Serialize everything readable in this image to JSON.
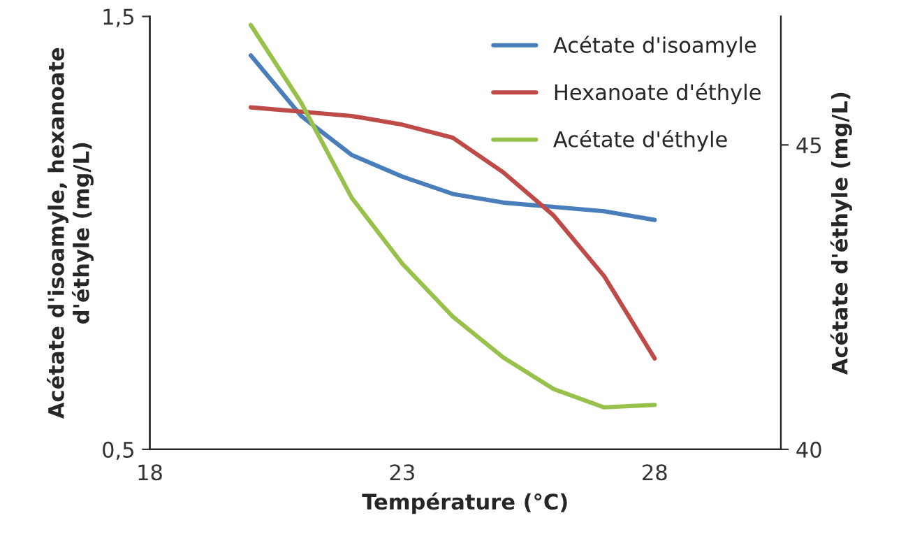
{
  "chart_data": {
    "type": "line",
    "xlabel": "Température (°C)",
    "ylabel": "Acétate d'isoamyle, hexanoate\nd'éthyle (mg/L)",
    "y2label": "Acétate d'éthyle (mg/L)",
    "x": [
      20,
      21,
      22,
      23,
      24,
      25,
      26,
      27,
      28
    ],
    "xlim": [
      18,
      30.5
    ],
    "xticks": [
      18,
      23,
      28
    ],
    "ylim": [
      0.5,
      1.5
    ],
    "yticks": [
      {
        "value": 0.5,
        "label": "0,5"
      },
      {
        "value": 1.5,
        "label": "1,5"
      }
    ],
    "y2lim": [
      40,
      47.11
    ],
    "y2ticks": [
      40,
      45
    ],
    "grid": false,
    "legend": "top right",
    "marker": "none",
    "line_style": "solid",
    "series": [
      {
        "name": "Acétate d'isoamyle",
        "color": "#4a7ebb",
        "values": [
          1.41,
          1.27,
          1.18,
          1.13,
          1.09,
          1.07,
          1.06,
          1.05,
          1.03
        ]
      },
      {
        "name": "Hexanoate d'éthyle",
        "color": "#be4b48",
        "values": [
          1.29,
          1.28,
          1.27,
          1.25,
          1.22,
          1.14,
          1.04,
          0.9,
          0.71
        ]
      },
      {
        "name": "Acétate d'éthyle",
        "color": "#98c14b",
        "axis": "y2",
        "values": [
          46.97,
          45.69,
          44.13,
          43.05,
          42.18,
          41.51,
          40.99,
          40.69,
          40.73
        ]
      }
    ]
  }
}
